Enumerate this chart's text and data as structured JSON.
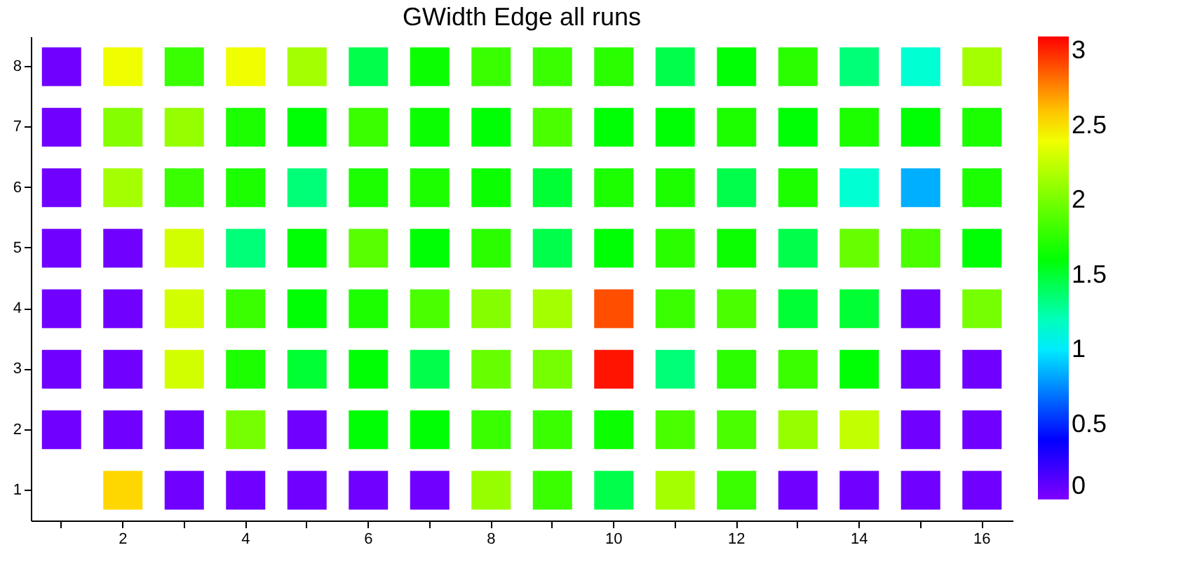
{
  "chart_data": {
    "type": "heatmap",
    "title": "GWidth Edge all runs",
    "categories": [
      null,
      "2",
      null,
      "4",
      null,
      "6",
      null,
      "8",
      null,
      "10",
      null,
      "12",
      null,
      "14",
      null,
      "16"
    ],
    "y_categories": [
      "8",
      "7",
      "6",
      "5",
      "4",
      "3",
      "2",
      "1"
    ],
    "cells": [
      [
        0.05,
        2.4,
        1.8,
        2.4,
        2.15,
        1.45,
        1.65,
        1.8,
        1.8,
        1.75,
        1.45,
        1.6,
        1.75,
        1.35,
        1.15,
        2.15
      ],
      [
        0.05,
        2.05,
        2.1,
        1.7,
        1.6,
        1.8,
        1.65,
        1.6,
        1.85,
        1.6,
        1.6,
        1.7,
        1.6,
        1.7,
        1.6,
        1.7
      ],
      [
        0.05,
        2.15,
        1.8,
        1.7,
        1.35,
        1.7,
        1.7,
        1.65,
        1.5,
        1.7,
        1.7,
        1.45,
        1.7,
        1.15,
        0.85,
        1.7
      ],
      [
        0.05,
        0.05,
        2.3,
        1.35,
        1.6,
        1.9,
        1.6,
        1.75,
        1.45,
        1.6,
        1.75,
        1.65,
        1.45,
        1.95,
        1.85,
        1.6
      ],
      [
        0.05,
        0.05,
        2.3,
        1.8,
        1.6,
        1.7,
        1.85,
        2.05,
        2.15,
        2.9,
        1.8,
        1.85,
        1.5,
        1.5,
        0.05,
        2.0
      ],
      [
        0.05,
        0.05,
        2.3,
        1.7,
        1.5,
        1.6,
        1.45,
        1.95,
        2.0,
        3.05,
        1.35,
        1.75,
        1.8,
        1.6,
        0.05,
        0.05
      ],
      [
        0.05,
        0.05,
        0.05,
        2.0,
        0.05,
        1.6,
        1.6,
        1.8,
        1.8,
        1.65,
        1.85,
        1.85,
        2.1,
        2.25,
        0.05,
        0.05
      ],
      [
        null,
        2.55,
        0.05,
        0.05,
        0.05,
        0.05,
        0.05,
        2.1,
        1.8,
        1.45,
        2.15,
        1.8,
        0.05,
        0.05,
        0.05,
        0.05
      ]
    ],
    "clim": [
      0,
      3.1
    ],
    "cticks": [
      0,
      0.5,
      1,
      1.5,
      2,
      2.5,
      3
    ],
    "grid": false
  }
}
